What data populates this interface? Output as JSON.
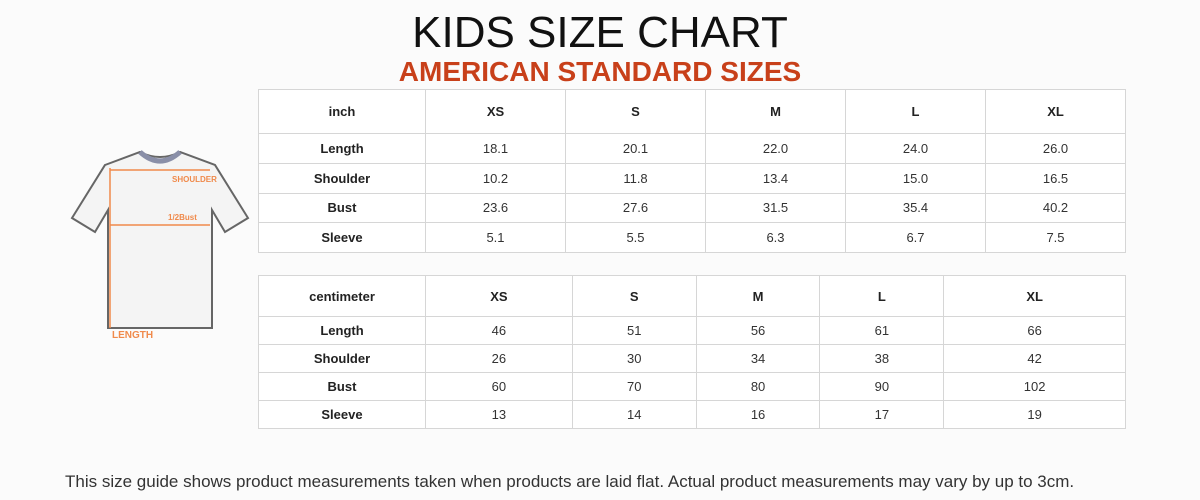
{
  "header": {
    "title": "KIDS SIZE CHART",
    "subtitle": "AMERICAN STANDARD SIZES"
  },
  "diagram": {
    "shoulder_label": "SHOULDER",
    "bust_label": "1/2Bust",
    "length_label": "LENGTH"
  },
  "tables": [
    {
      "header": [
        "inch",
        "XS",
        "S",
        "M",
        "L",
        "XL"
      ],
      "rows": [
        [
          "Length",
          "18.1",
          "20.1",
          "22.0",
          "24.0",
          "26.0"
        ],
        [
          "Shoulder",
          "10.2",
          "11.8",
          "13.4",
          "15.0",
          "16.5"
        ],
        [
          "Bust",
          "23.6",
          "27.6",
          "31.5",
          "35.4",
          "40.2"
        ],
        [
          "Sleeve",
          "5.1",
          "5.5",
          "6.3",
          "6.7",
          "7.5"
        ]
      ]
    },
    {
      "header": [
        "centimeter",
        "XS",
        "S",
        "M",
        "L",
        "XL"
      ],
      "rows": [
        [
          "Length",
          "46",
          "51",
          "56",
          "61",
          "66"
        ],
        [
          "Shoulder",
          "26",
          "30",
          "34",
          "38",
          "42"
        ],
        [
          "Bust",
          "60",
          "70",
          "80",
          "90",
          "102"
        ],
        [
          "Sleeve",
          "13",
          "14",
          "16",
          "17",
          "19"
        ]
      ]
    }
  ],
  "footer": {
    "note": "This size guide shows product measurements taken when products are laid flat. Actual product measurements may vary by up to 3cm."
  }
}
